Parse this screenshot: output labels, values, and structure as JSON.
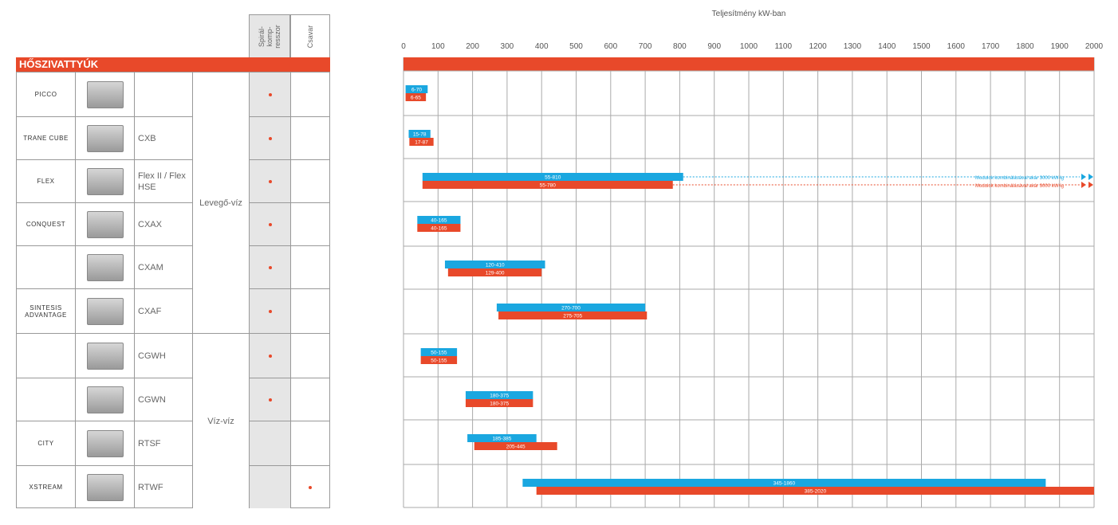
{
  "left": {
    "header_spiral": "Spirál-\nkomp-\nresszor",
    "header_csavar": "Csavar",
    "banner": "HŐSZIVATTYÚK",
    "types": {
      "air": "Levegő-víz",
      "water": "Víz-víz"
    },
    "rows": [
      {
        "brand": "PICCO",
        "model": "",
        "spiral": true,
        "screw": false
      },
      {
        "brand": "TRANE CUBE",
        "model": "CXB",
        "spiral": true,
        "screw": false
      },
      {
        "brand": "FLEX",
        "model": "Flex II / Flex HSE",
        "spiral": true,
        "screw": false
      },
      {
        "brand": "CONQUEST",
        "model": "CXAX",
        "spiral": true,
        "screw": false
      },
      {
        "brand": "",
        "model": "CXAM",
        "spiral": true,
        "screw": false
      },
      {
        "brand": "SINTESIS ADVANTAGE",
        "model": "CXAF",
        "spiral": true,
        "screw": false
      },
      {
        "brand": "",
        "model": "CGWH",
        "spiral": true,
        "screw": false
      },
      {
        "brand": "",
        "model": "CGWN",
        "spiral": true,
        "screw": false
      },
      {
        "brand": "CITY",
        "model": "RTSF",
        "spiral": false,
        "screw": false
      },
      {
        "brand": "XSTREAM",
        "model": "RTWF",
        "spiral": false,
        "screw": true
      }
    ]
  },
  "chart_data": {
    "type": "bar",
    "orientation": "horizontal-range",
    "title": "Teljesítmény kW-ban",
    "xlim": [
      0,
      2000
    ],
    "ticks": [
      0,
      100,
      200,
      300,
      400,
      500,
      600,
      700,
      800,
      900,
      1000,
      1100,
      1200,
      1300,
      1400,
      1500,
      1600,
      1700,
      1800,
      1900,
      2000
    ],
    "colors": {
      "blue": "#1aa7e0",
      "red": "#e8492a"
    },
    "categories": [
      "PICCO",
      "CXB",
      "Flex II / Flex HSE",
      "CXAX",
      "CXAM",
      "CXAF",
      "CGWH",
      "CGWN",
      "RTSF",
      "RTWF"
    ],
    "series": [
      {
        "name": "blue",
        "ranges": [
          [
            6,
            70
          ],
          [
            15,
            78
          ],
          [
            55,
            810
          ],
          [
            40,
            165
          ],
          [
            120,
            410
          ],
          [
            270,
            700
          ],
          [
            50,
            155
          ],
          [
            180,
            375
          ],
          [
            185,
            385
          ],
          [
            345,
            1860
          ]
        ],
        "labels": [
          "6-70",
          "15-78",
          "55-810",
          "40-165",
          "120-410",
          "270-700",
          "50-155",
          "180-375",
          "185-385",
          "345-1860"
        ]
      },
      {
        "name": "red",
        "ranges": [
          [
            6,
            65
          ],
          [
            17,
            87
          ],
          [
            55,
            780
          ],
          [
            40,
            165
          ],
          [
            129,
            400
          ],
          [
            275,
            705
          ],
          [
            50,
            155
          ],
          [
            180,
            375
          ],
          [
            205,
            445
          ],
          [
            385,
            2020
          ]
        ],
        "labels": [
          "6-65",
          "17-87",
          "55-780",
          "40-165",
          "129-400",
          "275-705",
          "50-155",
          "180-375",
          "205-445",
          "385-2020"
        ]
      }
    ],
    "annotation": "Modulok kombinálásával akár 3000 kW-ig"
  }
}
